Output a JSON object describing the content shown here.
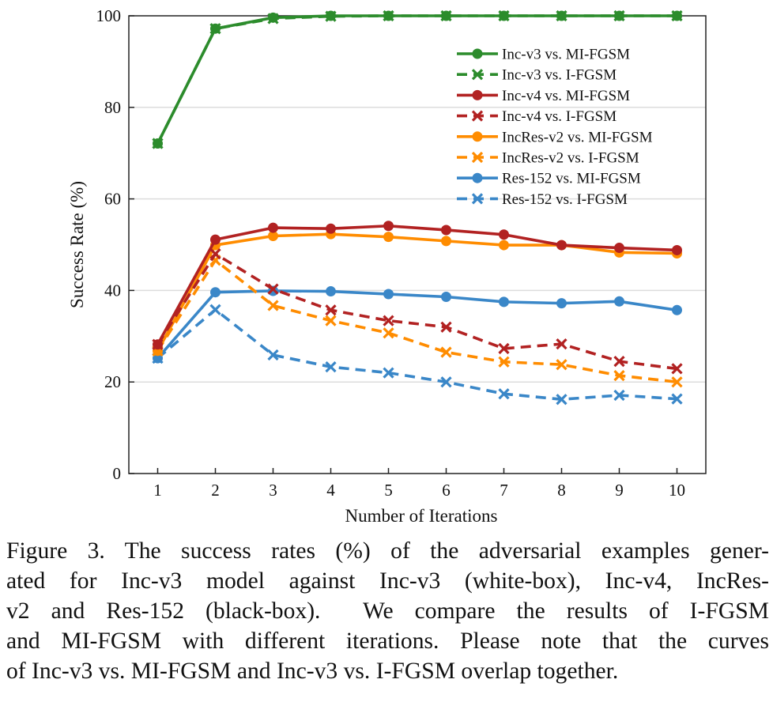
{
  "chart_data": {
    "type": "line",
    "title": "",
    "xlabel": "Number of Iterations",
    "ylabel": "Success Rate (%)",
    "x": [
      1,
      2,
      3,
      4,
      5,
      6,
      7,
      8,
      9,
      10
    ],
    "xlim": [
      0.5,
      10.5
    ],
    "ylim": [
      0,
      100
    ],
    "yticks": [
      0,
      20,
      40,
      60,
      80,
      100
    ],
    "grid": "horizontal",
    "legend_position": "top-right",
    "series": [
      {
        "name": "Inc-v3 vs. MI-FGSM",
        "color": "#2c8c2c",
        "dash": "solid",
        "marker": "circle",
        "values": [
          72.1,
          97.2,
          99.6,
          100,
          100,
          100,
          100,
          100,
          100,
          100
        ]
      },
      {
        "name": "Inc-v3 vs. I-FGSM",
        "color": "#2c8c2c",
        "dash": "dashed",
        "marker": "x",
        "values": [
          72.1,
          97.2,
          99.4,
          99.9,
          100,
          100,
          100,
          100,
          100,
          100
        ]
      },
      {
        "name": "Inc-v4 vs. MI-FGSM",
        "color": "#b22222",
        "dash": "solid",
        "marker": "circle",
        "values": [
          28.2,
          51.1,
          53.7,
          53.5,
          54.1,
          53.2,
          52.2,
          49.9,
          49.3,
          48.8
        ]
      },
      {
        "name": "Inc-v4 vs. I-FGSM",
        "color": "#b22222",
        "dash": "dashed",
        "marker": "x",
        "values": [
          28.2,
          48.0,
          40.3,
          35.7,
          33.4,
          32.0,
          27.3,
          28.3,
          24.5,
          22.9
        ]
      },
      {
        "name": "IncRes-v2 vs. MI-FGSM",
        "color": "#ff8c00",
        "dash": "solid",
        "marker": "circle",
        "values": [
          26.8,
          49.9,
          51.9,
          52.3,
          51.7,
          50.8,
          49.9,
          49.9,
          48.3,
          48.1
        ]
      },
      {
        "name": "IncRes-v2 vs. I-FGSM",
        "color": "#ff8c00",
        "dash": "dashed",
        "marker": "x",
        "values": [
          26.8,
          46.6,
          36.7,
          33.4,
          30.7,
          26.5,
          24.4,
          23.8,
          21.4,
          20.0
        ]
      },
      {
        "name": "Res-152 vs. MI-FGSM",
        "color": "#3a87c8",
        "dash": "solid",
        "marker": "circle",
        "values": [
          25.2,
          39.6,
          39.9,
          39.8,
          39.2,
          38.6,
          37.5,
          37.2,
          37.6,
          35.7
        ]
      },
      {
        "name": "Res-152 vs. I-FGSM",
        "color": "#3a87c8",
        "dash": "dashed",
        "marker": "x",
        "values": [
          25.2,
          35.8,
          25.9,
          23.3,
          22.0,
          20.0,
          17.4,
          16.2,
          17.1,
          16.3
        ]
      }
    ]
  },
  "caption": {
    "lines": [
      "Figure 3. The success rates (%) of the adversarial examples gener-",
      "ated for Inc-v3 model against Inc-v3 (white-box), Inc-v4, IncRes-",
      "v2 and Res-152 (black-box).  We compare the results of I-FGSM",
      "and MI-FGSM with different iterations. Please note that the curves",
      "of Inc-v3 vs. MI-FGSM and Inc-v3 vs. I-FGSM overlap together."
    ]
  }
}
